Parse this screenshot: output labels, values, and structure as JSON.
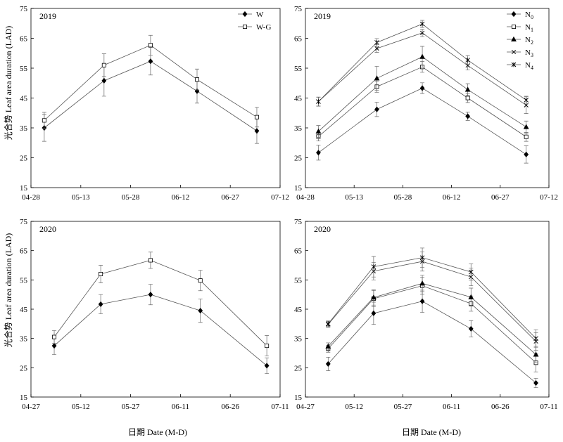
{
  "figure": {
    "xlabel": "日期 Date (M-D)",
    "ylabel": "光合势 Leaf area duration (LAD)"
  },
  "chart_data": [
    {
      "type": "line",
      "panel": "top-left",
      "year_label": "2019",
      "xlim": [
        "04-28",
        "07-12"
      ],
      "x_ticks": [
        "04-28",
        "05-13",
        "05-28",
        "06-12",
        "06-27",
        "07-12"
      ],
      "ylim": [
        15,
        75
      ],
      "y_ticks": [
        15,
        25,
        35,
        45,
        55,
        65,
        75
      ],
      "x": [
        "05-02",
        "05-20",
        "06-03",
        "06-17",
        "07-05"
      ],
      "legend_position": "top-right",
      "series": [
        {
          "name": "W",
          "marker": "diamond",
          "values": [
            35,
            50.8,
            57.3,
            47.3,
            34.0
          ],
          "errors": [
            4.5,
            5.2,
            4.6,
            4.0,
            4.2
          ]
        },
        {
          "name": "W-G",
          "marker": "square",
          "values": [
            37.5,
            56.0,
            62.7,
            51.2,
            38.6
          ],
          "errors": [
            2.7,
            3.8,
            3.3,
            3.5,
            3.3
          ]
        }
      ]
    },
    {
      "type": "line",
      "panel": "top-right",
      "year_label": "2019",
      "xlim": [
        "04-28",
        "07-12"
      ],
      "x_ticks": [
        "04-28",
        "05-13",
        "05-28",
        "06-12",
        "06-27",
        "07-12"
      ],
      "ylim": [
        15,
        75
      ],
      "y_ticks": [
        15,
        25,
        35,
        45,
        55,
        65,
        75
      ],
      "x": [
        "05-02",
        "05-20",
        "06-03",
        "06-17",
        "07-05"
      ],
      "legend_position": "top-right",
      "series": [
        {
          "name": "N0",
          "name_main": "N",
          "name_sub": "0",
          "marker": "diamond",
          "values": [
            26.7,
            41.2,
            48.3,
            38.9,
            26.1
          ],
          "errors": [
            2.5,
            2.4,
            1.8,
            1.4,
            2.9
          ]
        },
        {
          "name": "N1",
          "name_main": "N",
          "name_sub": "1",
          "marker": "square",
          "values": [
            32.1,
            48.8,
            55.4,
            45.0,
            32.0
          ],
          "errors": [
            1.5,
            1.9,
            1.8,
            1.5,
            1.5
          ]
        },
        {
          "name": "N2",
          "name_main": "N",
          "name_sub": "2",
          "marker": "triangle",
          "values": [
            33.8,
            51.6,
            58.8,
            47.8,
            35.3
          ],
          "errors": [
            2.0,
            4.0,
            3.5,
            2.0,
            2.0
          ]
        },
        {
          "name": "N3",
          "name_main": "N",
          "name_sub": "3",
          "marker": "x",
          "values": [
            43.8,
            61.6,
            66.8,
            55.9,
            42.6
          ],
          "errors": [
            1.5,
            1.3,
            1.2,
            1.5,
            2.8
          ]
        },
        {
          "name": "N4",
          "name_main": "N",
          "name_sub": "4",
          "marker": "star",
          "values": [
            43.8,
            63.6,
            69.8,
            57.7,
            44.3
          ],
          "errors": [
            1.5,
            1.3,
            1.2,
            1.5,
            1.3
          ]
        }
      ]
    },
    {
      "type": "line",
      "panel": "bottom-left",
      "year_label": "2020",
      "xlim": [
        "04-27",
        "07-11"
      ],
      "x_ticks": [
        "04-27",
        "05-12",
        "05-27",
        "06-11",
        "06-26",
        "07-11"
      ],
      "ylim": [
        15,
        75
      ],
      "y_ticks": [
        15,
        25,
        35,
        45,
        55,
        65,
        75
      ],
      "x": [
        "05-04",
        "05-18",
        "06-02",
        "06-17",
        "07-07"
      ],
      "legend_position": "none",
      "series": [
        {
          "name": "W",
          "marker": "diamond",
          "values": [
            32.5,
            46.7,
            50.0,
            44.5,
            25.7
          ],
          "errors": [
            3.0,
            3.3,
            3.5,
            4.0,
            2.7
          ]
        },
        {
          "name": "W-G",
          "marker": "square",
          "values": [
            35.5,
            57.0,
            61.7,
            54.8,
            32.5
          ],
          "errors": [
            2.2,
            3.0,
            2.8,
            3.5,
            3.5
          ]
        }
      ]
    },
    {
      "type": "line",
      "panel": "bottom-right",
      "year_label": "2020",
      "xlim": [
        "04-27",
        "07-11"
      ],
      "x_ticks": [
        "04-27",
        "05-12",
        "05-27",
        "06-11",
        "06-26",
        "07-11"
      ],
      "ylim": [
        15,
        75
      ],
      "y_ticks": [
        15,
        25,
        35,
        45,
        55,
        65,
        75
      ],
      "x": [
        "05-04",
        "05-18",
        "06-02",
        "06-17",
        "07-07"
      ],
      "legend_position": "none",
      "series": [
        {
          "name": "N0",
          "marker": "diamond",
          "values": [
            26.3,
            43.6,
            47.7,
            38.3,
            19.8
          ],
          "errors": [
            2.3,
            3.8,
            3.8,
            2.8,
            1.6
          ]
        },
        {
          "name": "N1",
          "marker": "square",
          "values": [
            31.5,
            48.6,
            53.0,
            46.9,
            26.7
          ],
          "errors": [
            1.2,
            2.8,
            2.9,
            2.6,
            3.1
          ]
        },
        {
          "name": "N2",
          "marker": "triangle",
          "values": [
            32.3,
            49.0,
            53.8,
            49.1,
            29.5
          ],
          "errors": [
            1.2,
            2.6,
            2.8,
            3.1,
            2.8
          ]
        },
        {
          "name": "N3",
          "marker": "x",
          "values": [
            39.8,
            58.0,
            61.3,
            56.0,
            34.0
          ],
          "errors": [
            1.0,
            3.0,
            3.3,
            3.0,
            3.0
          ]
        },
        {
          "name": "N4",
          "marker": "star",
          "values": [
            40.0,
            59.5,
            62.6,
            57.7,
            35.0
          ],
          "errors": [
            1.0,
            3.5,
            3.3,
            2.8,
            3.0
          ]
        }
      ]
    }
  ]
}
